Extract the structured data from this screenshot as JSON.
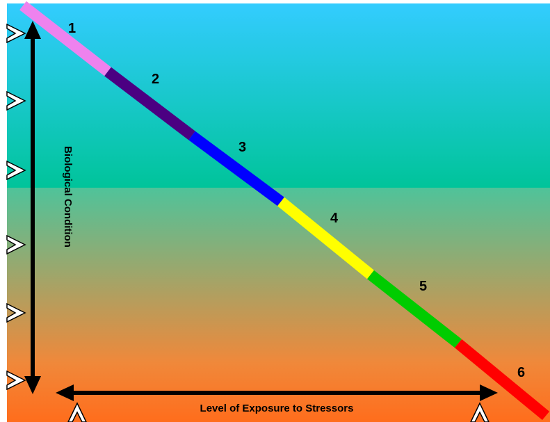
{
  "diagram": {
    "y_axis_label": "Biological Condition",
    "x_axis_label": "Level of Exposure to Stressors",
    "tiers": [
      {
        "label": "1",
        "color": "#ee82ee"
      },
      {
        "label": "2",
        "color": "#4b0082"
      },
      {
        "label": "3",
        "color": "#0000ff"
      },
      {
        "label": "4",
        "color": "#ffff00"
      },
      {
        "label": "5",
        "color": "#00cc00"
      },
      {
        "label": "6",
        "color": "#ff0000"
      }
    ],
    "background_colors": {
      "top": "#33ccff",
      "middle": "#00c49a",
      "lower": "#f0883a",
      "bottom": "#ff6d1c"
    },
    "arrow_color": "#000000",
    "marker_color": "#ffffff"
  }
}
